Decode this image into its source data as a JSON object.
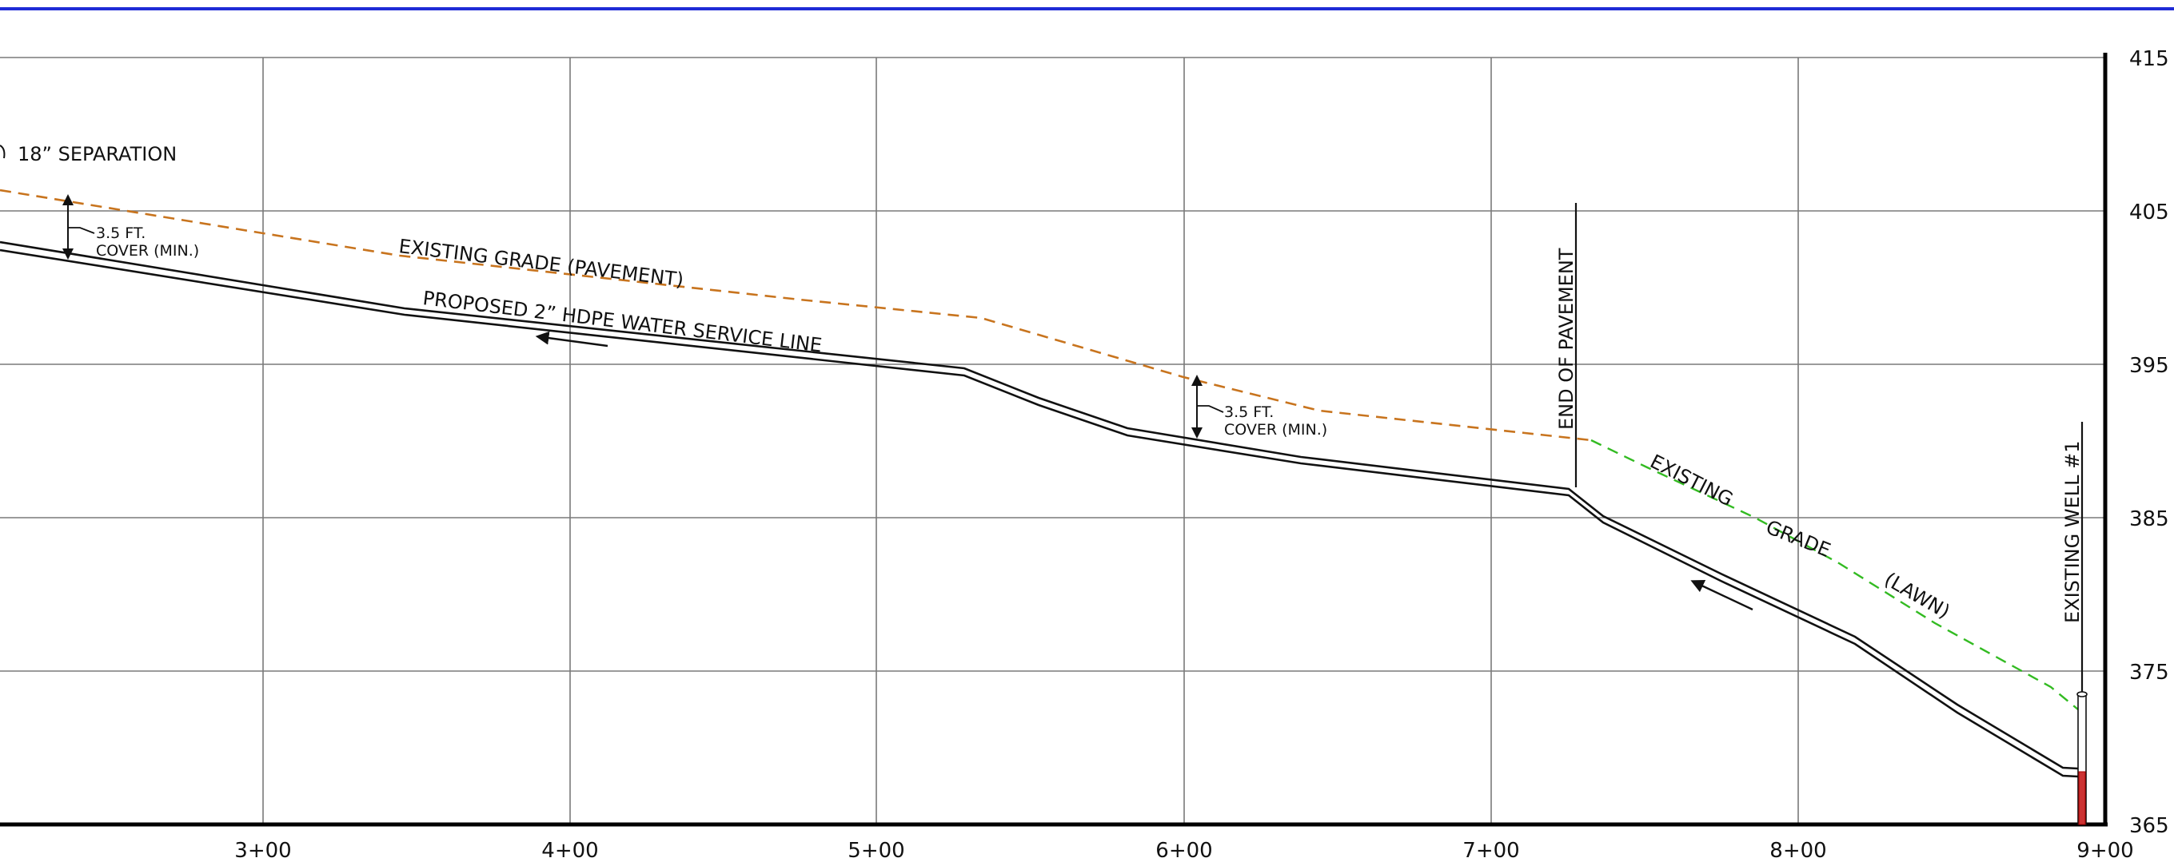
{
  "colors": {
    "border_top": "#1f2bd6",
    "grid": "#7a7a7a",
    "axis": "#000000",
    "pavement_grade": "#c8741e",
    "lawn_grade": "#33bb22",
    "pipe": "#111111",
    "well_fill": "#cc3333"
  },
  "axes": {
    "x_ticks": [
      "3+00",
      "4+00",
      "5+00",
      "6+00",
      "7+00",
      "8+00",
      "9+00"
    ],
    "y_ticks": [
      "415",
      "405",
      "395",
      "385",
      "375",
      "365"
    ]
  },
  "labels": {
    "separation": "18” SEPARATION",
    "existing_grade_pavement": "EXISTING GRADE (PAVEMENT)",
    "proposed_line": "PROPOSED 2”  HDPE WATER SERVICE LINE",
    "cover_line1": "3.5 FT.",
    "cover_line2": "COVER (MIN.)",
    "end_of_pavement": "END OF PAVEMENT",
    "existing_grade_word1": "EXISTING",
    "existing_grade_word2": "GRADE",
    "lawn": "(LAWN)",
    "existing_well": "EXISTING WELL #1"
  }
}
